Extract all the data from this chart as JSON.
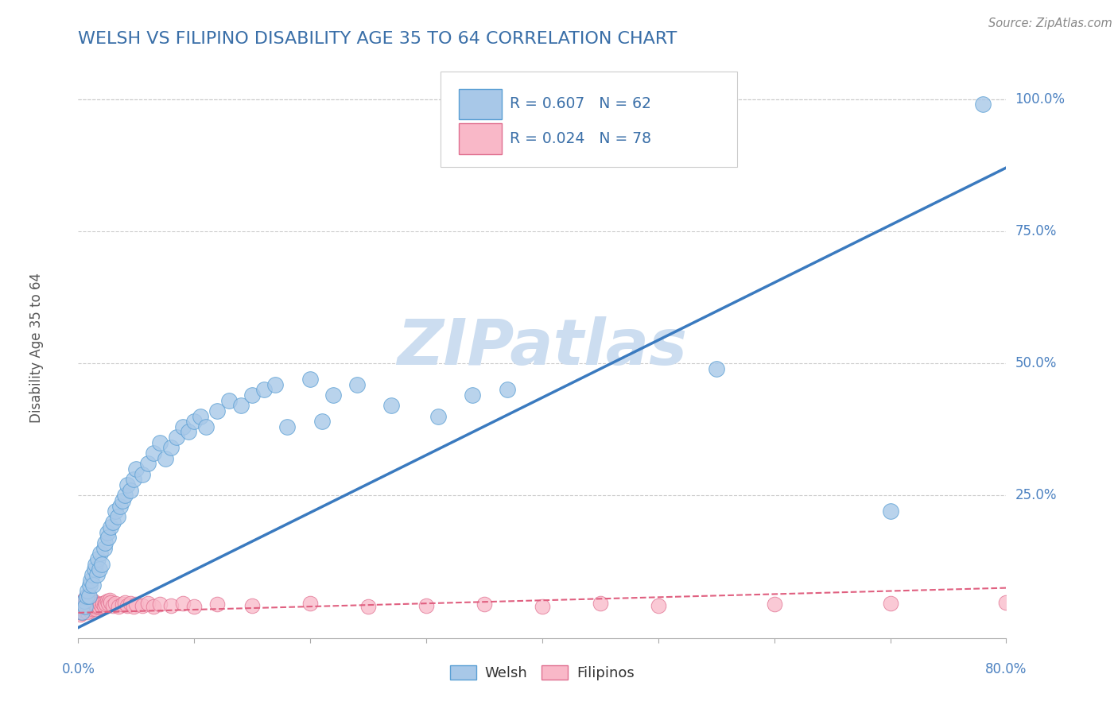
{
  "title": "WELSH VS FILIPINO DISABILITY AGE 35 TO 64 CORRELATION CHART",
  "source_text": "Source: ZipAtlas.com",
  "ylabel": "Disability Age 35 to 64",
  "ytick_labels": [
    "25.0%",
    "50.0%",
    "75.0%",
    "100.0%"
  ],
  "ytick_values": [
    0.25,
    0.5,
    0.75,
    1.0
  ],
  "xlim": [
    0.0,
    0.8
  ],
  "ylim": [
    -0.02,
    1.08
  ],
  "welsh_color": "#a8c8e8",
  "welsh_edge_color": "#5a9fd4",
  "filipino_color": "#f9b8c8",
  "filipino_edge_color": "#e07090",
  "welsh_R": 0.607,
  "welsh_N": 62,
  "filipino_R": 0.024,
  "filipino_N": 78,
  "trend_welsh_color": "#3a7abf",
  "trend_filipino_color": "#e06080",
  "watermark": "ZIPatlas",
  "watermark_color": "#ccddf0",
  "title_color": "#3a6fa8",
  "legend_R_N_color": "#3a6fa8",
  "axis_label_color": "#4a80c0",
  "background_color": "#ffffff",
  "welsh_scatter_x": [
    0.003,
    0.005,
    0.006,
    0.007,
    0.008,
    0.009,
    0.01,
    0.011,
    0.012,
    0.013,
    0.014,
    0.015,
    0.016,
    0.017,
    0.018,
    0.019,
    0.02,
    0.022,
    0.023,
    0.025,
    0.026,
    0.028,
    0.03,
    0.032,
    0.034,
    0.036,
    0.038,
    0.04,
    0.042,
    0.045,
    0.048,
    0.05,
    0.055,
    0.06,
    0.065,
    0.07,
    0.075,
    0.08,
    0.085,
    0.09,
    0.095,
    0.1,
    0.105,
    0.11,
    0.12,
    0.13,
    0.14,
    0.15,
    0.16,
    0.17,
    0.18,
    0.2,
    0.21,
    0.22,
    0.24,
    0.27,
    0.31,
    0.34,
    0.37,
    0.55,
    0.7,
    0.78
  ],
  "welsh_scatter_y": [
    0.03,
    0.05,
    0.04,
    0.06,
    0.07,
    0.06,
    0.08,
    0.09,
    0.1,
    0.08,
    0.11,
    0.12,
    0.1,
    0.13,
    0.11,
    0.14,
    0.12,
    0.15,
    0.16,
    0.18,
    0.17,
    0.19,
    0.2,
    0.22,
    0.21,
    0.23,
    0.24,
    0.25,
    0.27,
    0.26,
    0.28,
    0.3,
    0.29,
    0.31,
    0.33,
    0.35,
    0.32,
    0.34,
    0.36,
    0.38,
    0.37,
    0.39,
    0.4,
    0.38,
    0.41,
    0.43,
    0.42,
    0.44,
    0.45,
    0.46,
    0.38,
    0.47,
    0.39,
    0.44,
    0.46,
    0.42,
    0.4,
    0.44,
    0.45,
    0.49,
    0.22,
    0.99
  ],
  "filipino_scatter_x": [
    0.001,
    0.001,
    0.002,
    0.002,
    0.002,
    0.003,
    0.003,
    0.003,
    0.004,
    0.004,
    0.004,
    0.005,
    0.005,
    0.005,
    0.006,
    0.006,
    0.006,
    0.007,
    0.007,
    0.007,
    0.008,
    0.008,
    0.008,
    0.009,
    0.009,
    0.01,
    0.01,
    0.011,
    0.011,
    0.012,
    0.012,
    0.013,
    0.013,
    0.014,
    0.014,
    0.015,
    0.015,
    0.016,
    0.017,
    0.018,
    0.019,
    0.02,
    0.021,
    0.022,
    0.023,
    0.024,
    0.025,
    0.026,
    0.027,
    0.028,
    0.03,
    0.032,
    0.035,
    0.038,
    0.04,
    0.042,
    0.045,
    0.048,
    0.05,
    0.055,
    0.06,
    0.065,
    0.07,
    0.08,
    0.09,
    0.1,
    0.12,
    0.15,
    0.2,
    0.25,
    0.3,
    0.35,
    0.4,
    0.45,
    0.5,
    0.6,
    0.7,
    0.8
  ],
  "filipino_scatter_y": [
    0.03,
    0.04,
    0.025,
    0.035,
    0.045,
    0.028,
    0.038,
    0.048,
    0.03,
    0.04,
    0.05,
    0.032,
    0.042,
    0.052,
    0.035,
    0.045,
    0.055,
    0.038,
    0.048,
    0.058,
    0.03,
    0.04,
    0.05,
    0.035,
    0.045,
    0.032,
    0.042,
    0.038,
    0.048,
    0.035,
    0.045,
    0.04,
    0.05,
    0.038,
    0.048,
    0.035,
    0.045,
    0.04,
    0.042,
    0.038,
    0.044,
    0.04,
    0.046,
    0.042,
    0.048,
    0.044,
    0.05,
    0.046,
    0.052,
    0.048,
    0.042,
    0.046,
    0.04,
    0.044,
    0.048,
    0.042,
    0.046,
    0.04,
    0.044,
    0.042,
    0.046,
    0.04,
    0.044,
    0.042,
    0.046,
    0.04,
    0.044,
    0.042,
    0.046,
    0.04,
    0.042,
    0.044,
    0.04,
    0.046,
    0.042,
    0.044,
    0.046,
    0.048
  ],
  "welsh_trend_x0": 0.0,
  "welsh_trend_y0": 0.0,
  "welsh_trend_x1": 0.8,
  "welsh_trend_y1": 0.87,
  "filipino_trend_x0": 0.0,
  "filipino_trend_y0": 0.028,
  "filipino_trend_x1": 0.8,
  "filipino_trend_y1": 0.075
}
